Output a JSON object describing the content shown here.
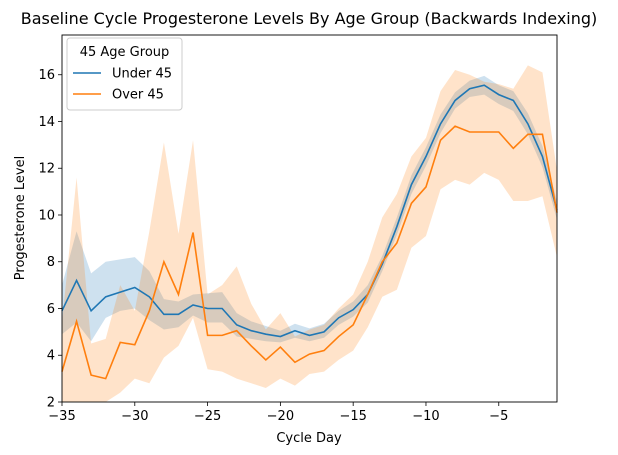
{
  "chart_data": {
    "type": "line",
    "title": "Baseline Cycle Progesterone Levels By Age Group (Backwards Indexing)",
    "xlabel": "Cycle Day",
    "ylabel": "Progesterone Level",
    "xlim": [
      -35,
      -1
    ],
    "ylim": [
      2,
      17.7
    ],
    "xticks": [
      -35,
      -30,
      -25,
      -20,
      -15,
      -10,
      -5
    ],
    "xtick_labels": [
      "−35",
      "−30",
      "−25",
      "−20",
      "−15",
      "−10",
      "−5"
    ],
    "yticks": [
      2,
      4,
      6,
      8,
      10,
      12,
      14,
      16
    ],
    "grid": false,
    "legend": {
      "title": "45 Age Group",
      "placement": "top-left",
      "entries": [
        "Under 45",
        "Over 45"
      ]
    },
    "x": [
      -35,
      -34,
      -33,
      -32,
      -31,
      -30,
      -29,
      -28,
      -27,
      -26,
      -25,
      -24,
      -23,
      -22,
      -21,
      -20,
      -19,
      -18,
      -17,
      -16,
      -15,
      -14,
      -13,
      -12,
      -11,
      -10,
      -9,
      -8,
      -7,
      -6,
      -5,
      -4,
      -3,
      -2,
      -1
    ],
    "series": [
      {
        "name": "Under 45",
        "color": "#1f77b4",
        "values": [
          5.9,
          7.2,
          5.9,
          6.5,
          6.7,
          6.9,
          6.5,
          5.75,
          5.75,
          6.15,
          6.0,
          6.0,
          5.3,
          5.05,
          4.9,
          4.8,
          5.05,
          4.85,
          5.0,
          5.6,
          5.95,
          6.6,
          7.9,
          9.5,
          11.3,
          12.5,
          13.9,
          14.9,
          15.4,
          15.55,
          15.15,
          14.9,
          13.9,
          12.5,
          10.2
        ],
        "lower": [
          4.9,
          5.4,
          4.6,
          5.6,
          5.9,
          6.0,
          5.5,
          5.1,
          5.2,
          5.7,
          5.4,
          5.4,
          4.8,
          4.7,
          4.6,
          4.55,
          4.75,
          4.6,
          4.75,
          5.3,
          5.65,
          6.25,
          7.6,
          9.15,
          10.9,
          12.1,
          13.5,
          14.55,
          15.05,
          15.15,
          14.75,
          14.45,
          13.45,
          12.05,
          9.8
        ],
        "upper": [
          7.0,
          9.3,
          7.5,
          8.0,
          8.1,
          8.2,
          7.6,
          6.4,
          6.3,
          6.6,
          6.65,
          6.7,
          5.8,
          5.45,
          5.25,
          5.05,
          5.35,
          5.15,
          5.35,
          5.9,
          6.3,
          7.0,
          8.25,
          9.9,
          11.7,
          12.9,
          14.3,
          15.25,
          15.75,
          15.95,
          15.55,
          15.3,
          14.35,
          12.95,
          10.6
        ]
      },
      {
        "name": "Over 45",
        "color": "#ff7f0e",
        "values": [
          3.3,
          5.45,
          3.15,
          3.0,
          4.55,
          4.45,
          5.9,
          8.0,
          6.6,
          9.25,
          4.85,
          4.85,
          5.05,
          4.4,
          3.8,
          4.35,
          3.7,
          4.05,
          4.2,
          4.8,
          5.3,
          6.6,
          8.0,
          8.8,
          10.5,
          11.2,
          13.2,
          13.8,
          13.55,
          13.55,
          13.55,
          12.85,
          13.45,
          13.45,
          10.1
        ],
        "lower": [
          2.0,
          2.0,
          2.0,
          2.0,
          2.4,
          3.0,
          2.8,
          3.9,
          4.4,
          5.6,
          3.4,
          3.3,
          3.0,
          2.8,
          2.6,
          3.0,
          2.7,
          3.2,
          3.3,
          3.8,
          4.2,
          5.2,
          6.5,
          6.8,
          8.6,
          9.1,
          11.1,
          11.5,
          11.3,
          11.8,
          11.5,
          10.6,
          10.6,
          10.8,
          8.2
        ],
        "upper": [
          5.4,
          11.6,
          4.5,
          4.7,
          7.0,
          5.9,
          9.3,
          13.1,
          9.2,
          13.2,
          6.6,
          7.0,
          7.8,
          6.2,
          5.1,
          5.8,
          4.8,
          5.1,
          5.3,
          6.0,
          6.6,
          8.0,
          9.9,
          10.9,
          12.5,
          13.3,
          15.3,
          16.2,
          16.0,
          15.7,
          15.6,
          15.4,
          16.4,
          16.1,
          11.9
        ]
      }
    ]
  }
}
